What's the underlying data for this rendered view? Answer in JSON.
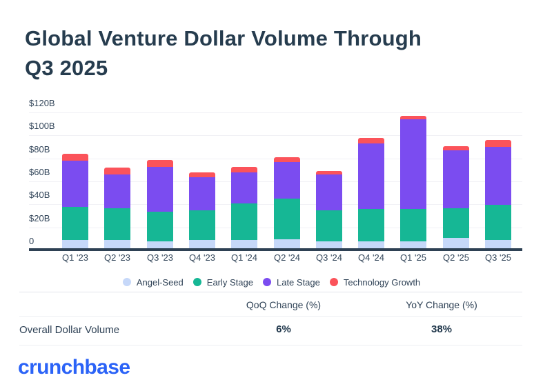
{
  "title": {
    "line1": "Global Venture Dollar Volume Through",
    "line2": "Q3 2025"
  },
  "chart_data": {
    "type": "bar",
    "stacked": true,
    "title": "Global Venture Dollar Volume Through Q3 2025",
    "unit": "$B",
    "categories": [
      "Q1 '23",
      "Q2 '23",
      "Q3 '23",
      "Q4 '23",
      "Q1 '24",
      "Q2 '24",
      "Q3 '24",
      "Q4 '24",
      "Q1 '25",
      "Q2 '25",
      "Q3 '25"
    ],
    "series": [
      {
        "name": "Angel-Seed",
        "color": "#c6d8f9",
        "values": [
          7,
          7,
          6,
          7,
          7,
          8,
          6,
          6,
          6,
          9,
          7
        ]
      },
      {
        "name": "Early Stage",
        "color": "#16b795",
        "values": [
          29,
          28,
          26,
          26,
          32,
          35,
          27,
          28,
          28,
          26,
          31
        ]
      },
      {
        "name": "Late Stage",
        "color": "#7b4cf0",
        "values": [
          40,
          29,
          39,
          29,
          27,
          32,
          31,
          57,
          78,
          50,
          50
        ]
      },
      {
        "name": "Technology Growth",
        "color": "#fb535a",
        "values": [
          6,
          6,
          6,
          4,
          5,
          4,
          3,
          5,
          3,
          4,
          6
        ]
      }
    ],
    "totals": [
      82,
      70,
      77,
      66,
      71,
      79,
      67,
      96,
      115,
      89,
      94
    ],
    "ylim": [
      0,
      120
    ],
    "yticks": [
      {
        "label": "$120B",
        "value": 120
      },
      {
        "label": "$100B",
        "value": 100
      },
      {
        "label": "$80B",
        "value": 80
      },
      {
        "label": "$60B",
        "value": 60
      },
      {
        "label": "$40B",
        "value": 40
      },
      {
        "label": "$20B",
        "value": 20
      },
      {
        "label": "0",
        "value": 0
      }
    ],
    "grid": true,
    "legend_position": "bottom"
  },
  "table": {
    "headers": {
      "col1": "QoQ Change (%)",
      "col2": "YoY Change (%)"
    },
    "rows": [
      {
        "label": "Overall Dollar Volume",
        "qoq": "6%",
        "yoy": "38%"
      }
    ]
  },
  "footer": {
    "logo_text": "crunchbase"
  },
  "colors": {
    "heading": "#263c4e",
    "axis_text": "#33465a",
    "axis_line": "#2e4154",
    "gridline": "#f1f1f5",
    "angel_seed": "#c6d8f9",
    "early_stage": "#16b795",
    "late_stage": "#7b4cf0",
    "technology_growth": "#fb535a",
    "logo_blue": "#2b63f7"
  }
}
